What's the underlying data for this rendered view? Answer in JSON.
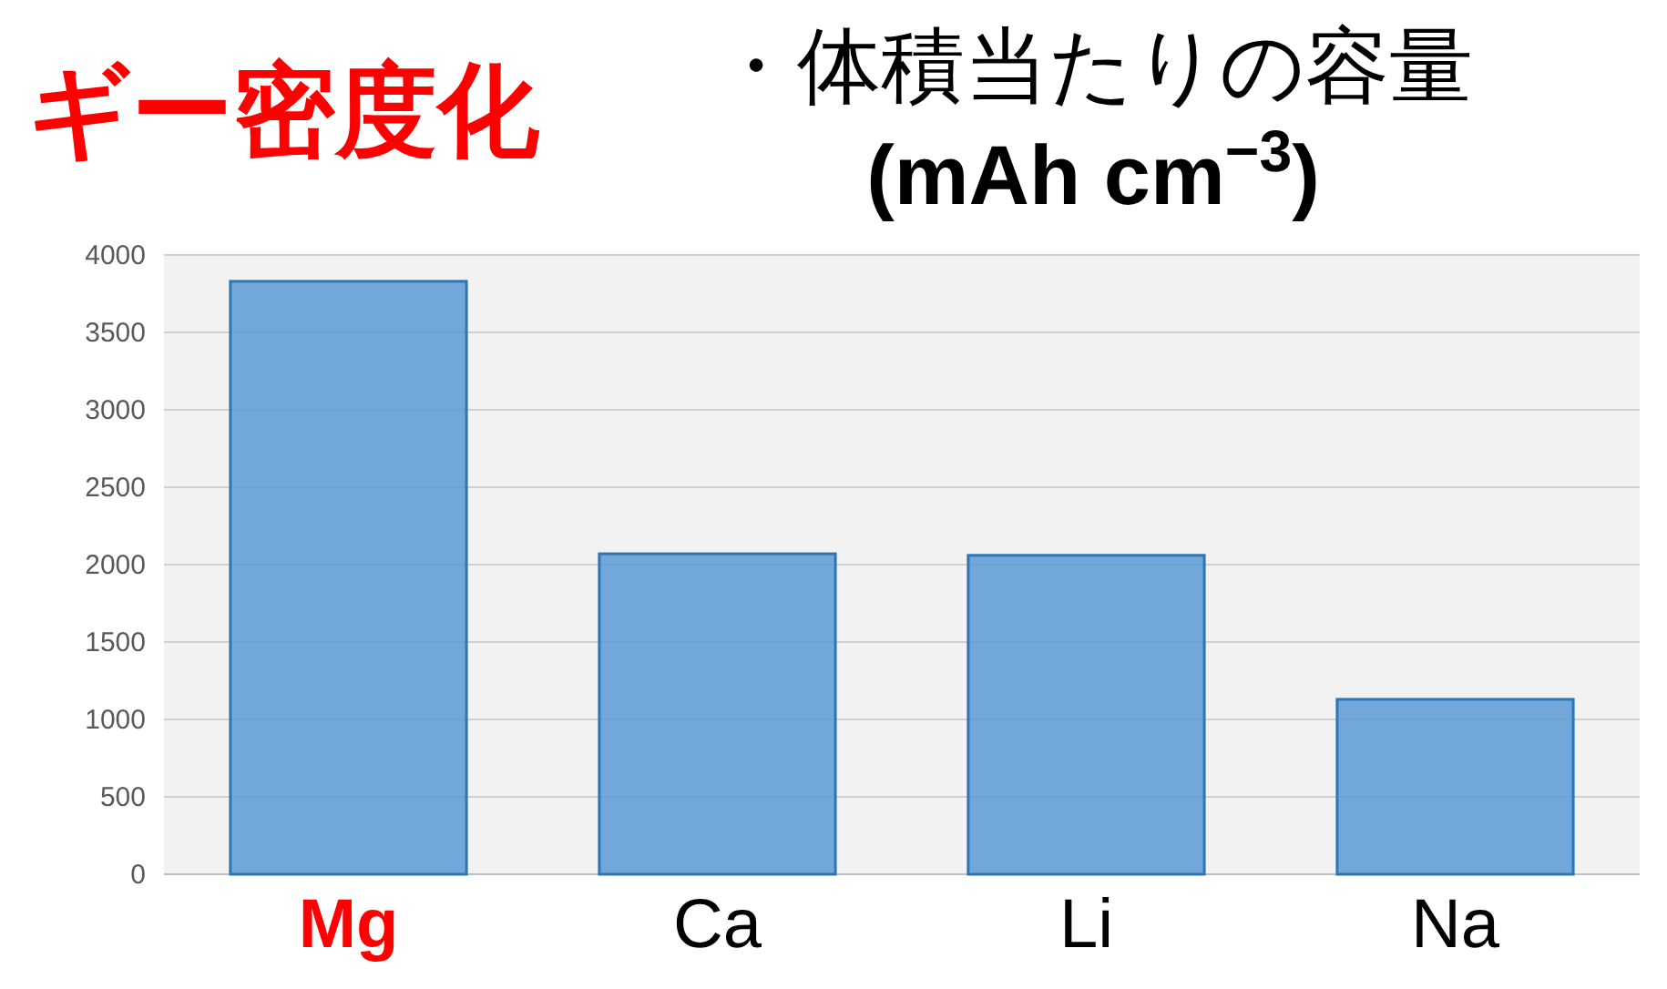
{
  "chart_data": {
    "type": "bar",
    "title": "・体積当たりの容量",
    "subtitle": "(mAh cm$^{−3}$)",
    "categories": [
      "Mg",
      "Ca",
      "Li",
      "Na"
    ],
    "values": [
      3830,
      2070,
      2060,
      1130
    ],
    "color": "#5b9bd5",
    "ylim": [
      0,
      4000
    ],
    "yticks": [
      0,
      500,
      1000,
      1500,
      2000,
      2500,
      3000,
      3500,
      4000
    ],
    "grid": "y",
    "annotations": [
      "ギー密度化"
    ]
  }
}
